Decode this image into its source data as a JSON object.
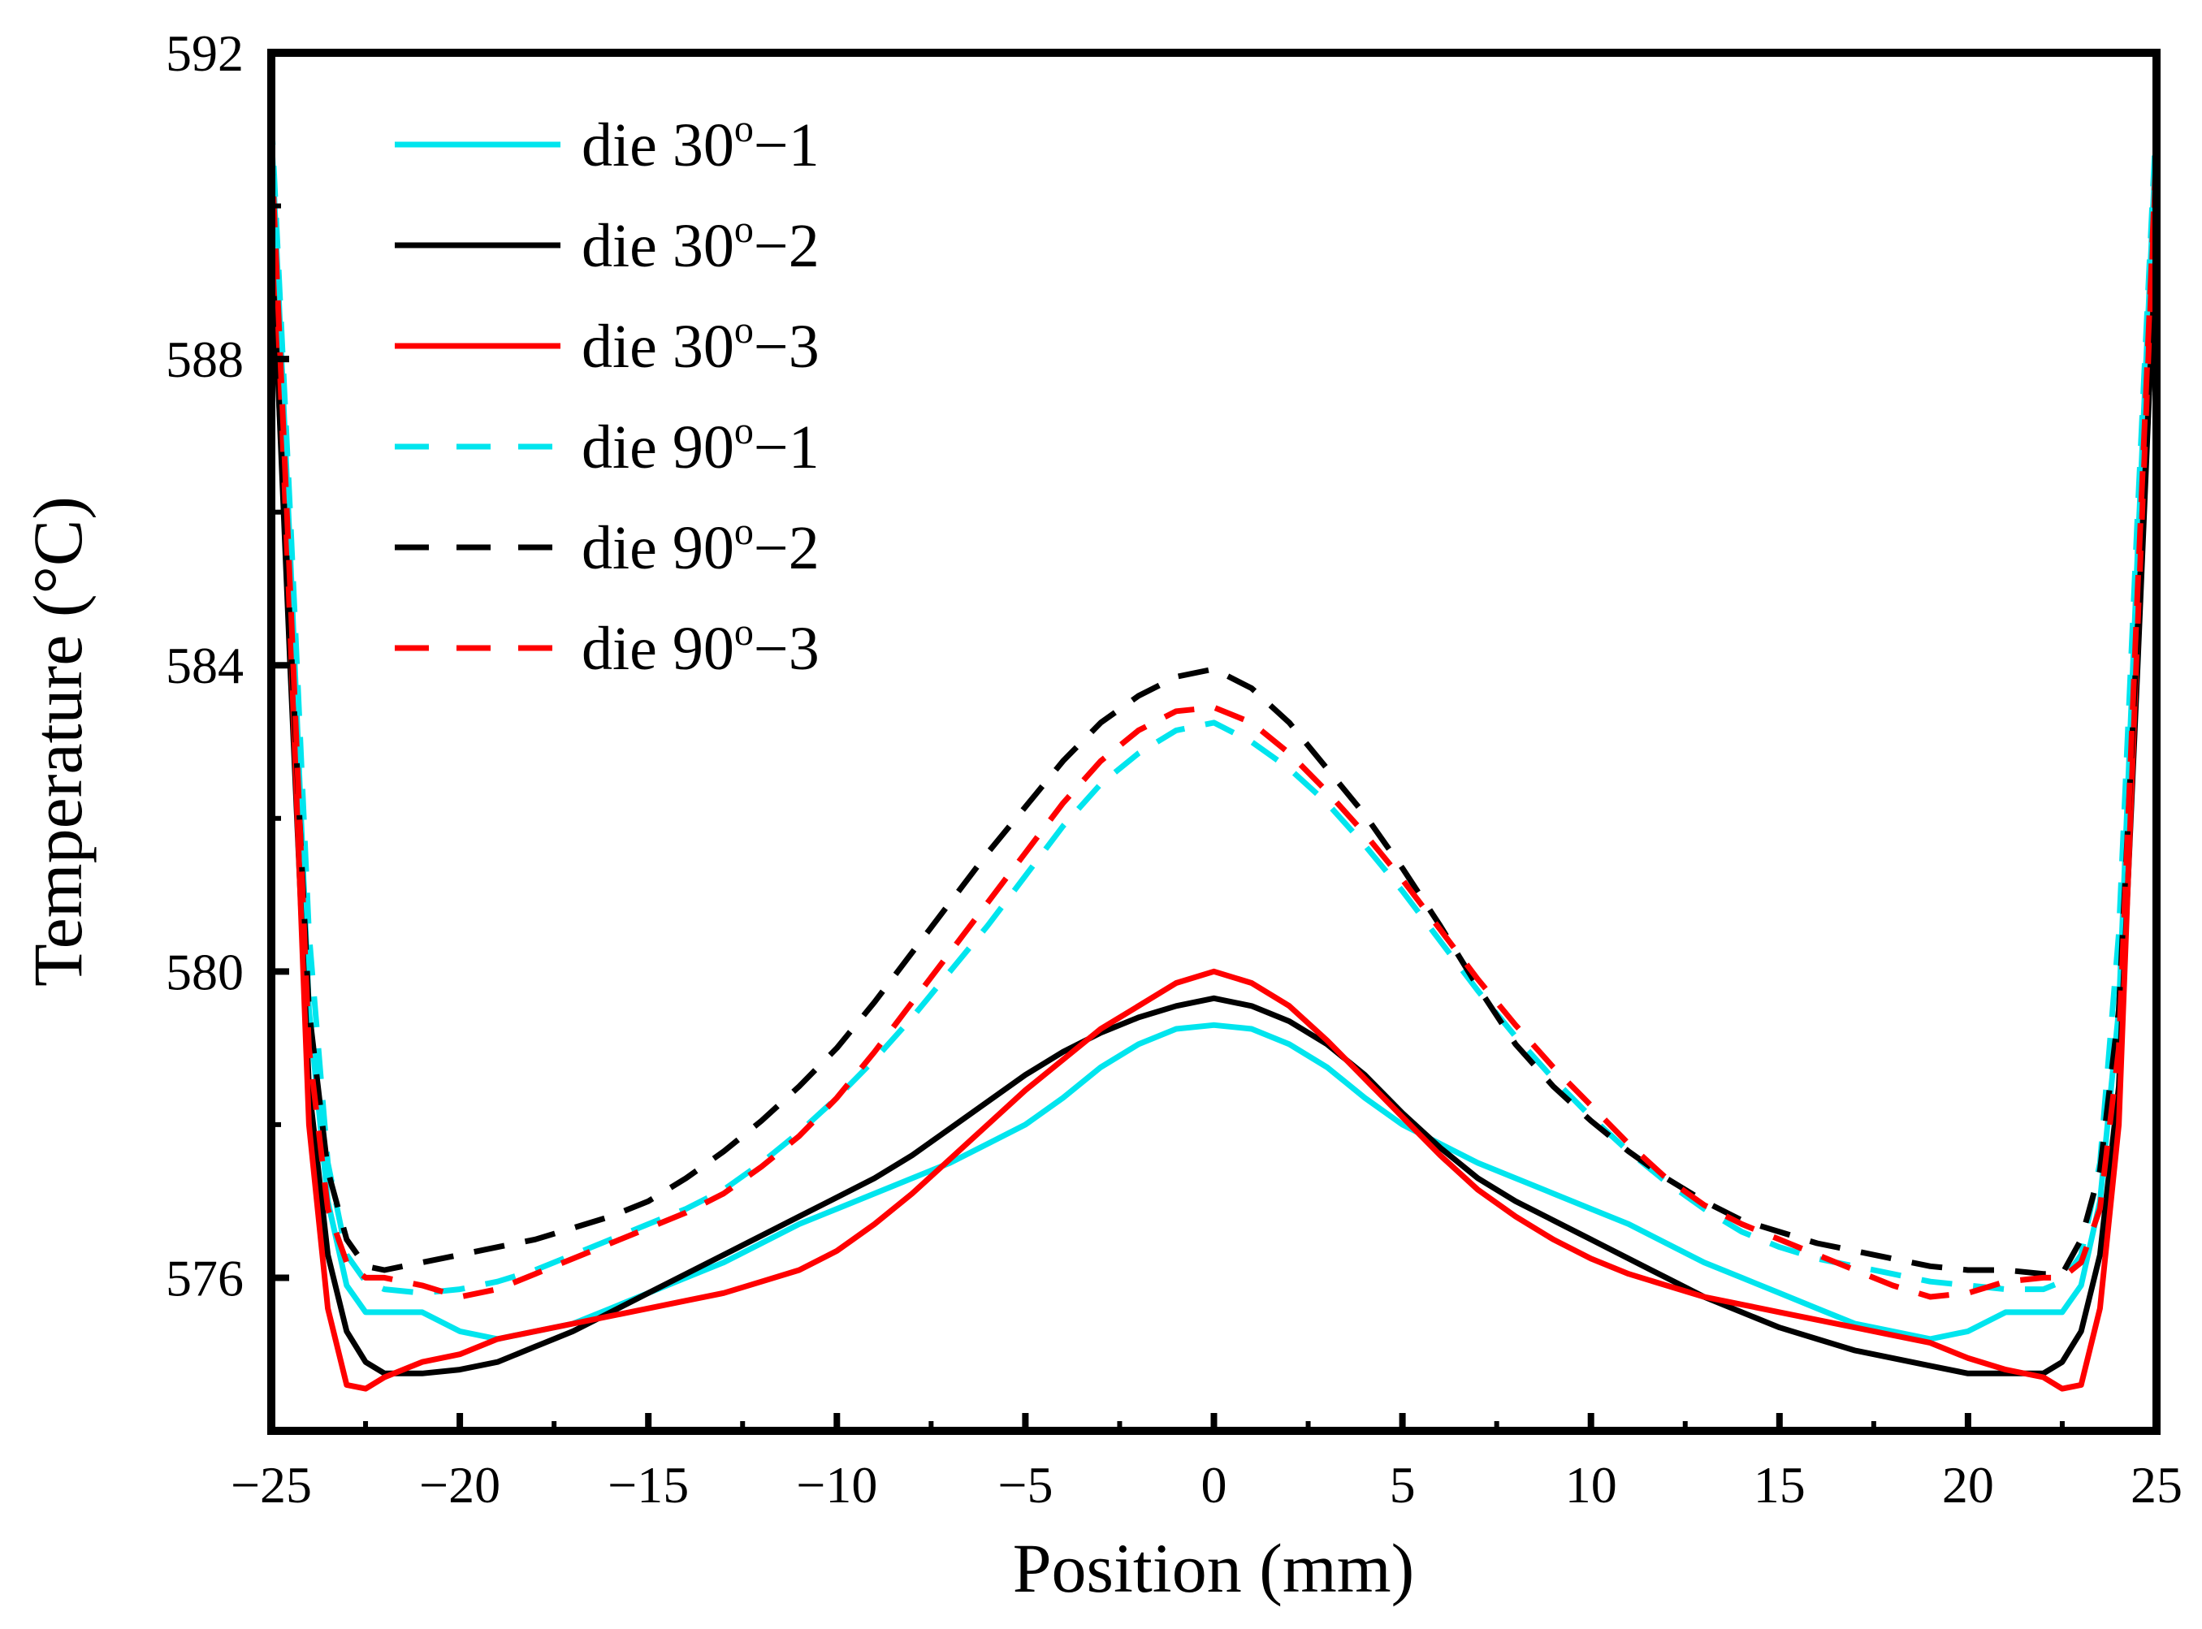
{
  "chart_data": {
    "type": "line",
    "xlabel": "Position (mm)",
    "ylabel": "Temperature (°C)",
    "xlim": [
      -25,
      25
    ],
    "ylim": [
      574,
      592
    ],
    "xticks": [
      -25,
      -20,
      -15,
      -10,
      -5,
      0,
      5,
      10,
      15,
      20,
      25
    ],
    "xtick_labels": [
      "−25",
      "−20",
      "−15",
      "−10",
      "−5",
      "0",
      "5",
      "10",
      "15",
      "20",
      "25"
    ],
    "yticks": [
      576,
      580,
      584,
      588,
      592
    ],
    "ytick_labels": [
      "576",
      "580",
      "584",
      "588",
      "592"
    ],
    "grid": false,
    "legend_position": "top-left",
    "series": [
      {
        "name": "die 30o−1",
        "label_main": "die 30",
        "label_sup": "o",
        "label_tail": "−1",
        "color": "#00E5EE",
        "dash": "solid",
        "x": [
          -25.0,
          -24.5,
          -24.0,
          -23.5,
          -23.0,
          -22.5,
          -22.0,
          -21.0,
          -20.0,
          -19.0,
          -18.0,
          -17.0,
          -16.0,
          -15.0,
          -14.0,
          -13.0,
          -12.0,
          -11.0,
          -10.0,
          -9.0,
          -8.0,
          -7.0,
          -6.0,
          -5.0,
          -4.0,
          -3.0,
          -2.0,
          -1.0,
          0.0,
          1.0,
          2.0,
          3.0,
          4.0,
          5.0,
          6.0,
          7.0,
          8.0,
          9.0,
          10.0,
          11.0,
          12.0,
          13.0,
          14.0,
          15.0,
          16.0,
          17.0,
          18.0,
          19.0,
          20.0,
          21.0,
          22.0,
          22.5,
          23.0,
          23.5,
          24.0,
          24.5,
          25.0
        ],
        "y": [
          591.0,
          585.5,
          579.5,
          577.0,
          575.9,
          575.55,
          575.55,
          575.55,
          575.3,
          575.2,
          575.3,
          575.4,
          575.6,
          575.8,
          576.0,
          576.2,
          576.45,
          576.7,
          576.9,
          577.1,
          577.3,
          577.5,
          577.75,
          578.0,
          578.35,
          578.75,
          579.05,
          579.25,
          579.3,
          579.25,
          579.05,
          578.75,
          578.35,
          578.0,
          577.75,
          577.5,
          577.3,
          577.1,
          576.9,
          576.7,
          576.45,
          576.2,
          576.0,
          575.8,
          575.6,
          575.4,
          575.3,
          575.2,
          575.3,
          575.55,
          575.55,
          575.55,
          575.9,
          577.0,
          579.5,
          585.5,
          591.0
        ]
      },
      {
        "name": "die 30o−2",
        "label_main": "die 30",
        "label_sup": "o",
        "label_tail": "−2",
        "color": "#000000",
        "dash": "solid",
        "x": [
          -25.0,
          -24.5,
          -24.0,
          -23.5,
          -23.0,
          -22.5,
          -22.0,
          -21.0,
          -20.0,
          -19.0,
          -18.0,
          -17.0,
          -16.0,
          -15.0,
          -14.0,
          -13.0,
          -12.0,
          -11.0,
          -10.0,
          -9.0,
          -8.0,
          -7.0,
          -6.0,
          -5.0,
          -4.0,
          -3.0,
          -2.0,
          -1.0,
          0.0,
          1.0,
          2.0,
          3.0,
          4.0,
          5.0,
          6.0,
          7.0,
          8.0,
          9.0,
          10.0,
          11.0,
          12.0,
          13.0,
          14.0,
          15.0,
          16.0,
          17.0,
          18.0,
          19.0,
          20.0,
          21.0,
          22.0,
          22.5,
          23.0,
          23.5,
          24.0,
          24.5,
          25.0
        ],
        "y": [
          589.8,
          584.0,
          578.5,
          576.3,
          575.3,
          574.9,
          574.75,
          574.75,
          574.8,
          574.9,
          575.1,
          575.3,
          575.55,
          575.8,
          576.05,
          576.3,
          576.55,
          576.8,
          577.05,
          577.3,
          577.6,
          577.95,
          578.3,
          578.65,
          578.95,
          579.2,
          579.4,
          579.55,
          579.65,
          579.55,
          579.35,
          579.05,
          578.65,
          578.15,
          577.7,
          577.3,
          577.0,
          576.75,
          576.5,
          576.25,
          576.0,
          575.75,
          575.55,
          575.35,
          575.2,
          575.05,
          574.95,
          574.85,
          574.75,
          574.75,
          574.75,
          574.9,
          575.3,
          576.3,
          578.5,
          584.0,
          589.8
        ]
      },
      {
        "name": "die 30o−3",
        "label_main": "die 30",
        "label_sup": "o",
        "label_tail": "−3",
        "color": "#FF0000",
        "dash": "solid",
        "x": [
          -25.0,
          -24.5,
          -24.0,
          -23.5,
          -23.0,
          -22.5,
          -22.0,
          -21.0,
          -20.0,
          -19.0,
          -18.0,
          -17.0,
          -16.0,
          -15.0,
          -14.0,
          -13.0,
          -12.0,
          -11.0,
          -10.0,
          -9.0,
          -8.0,
          -7.0,
          -6.0,
          -5.0,
          -4.0,
          -3.0,
          -2.0,
          -1.0,
          0.0,
          1.0,
          2.0,
          3.0,
          4.0,
          5.0,
          6.0,
          7.0,
          8.0,
          9.0,
          10.0,
          11.0,
          12.0,
          13.0,
          14.0,
          15.0,
          16.0,
          17.0,
          18.0,
          19.0,
          20.0,
          21.0,
          22.0,
          22.5,
          23.0,
          23.5,
          24.0,
          24.5,
          25.0
        ],
        "y": [
          590.7,
          584.5,
          578.0,
          575.6,
          574.6,
          574.55,
          574.7,
          574.9,
          575.0,
          575.2,
          575.3,
          575.4,
          575.5,
          575.6,
          575.7,
          575.8,
          575.95,
          576.1,
          576.35,
          576.7,
          577.1,
          577.55,
          578.0,
          578.45,
          578.85,
          579.25,
          579.55,
          579.85,
          580.0,
          579.85,
          579.55,
          579.1,
          578.6,
          578.1,
          577.6,
          577.15,
          576.8,
          576.5,
          576.25,
          576.05,
          575.9,
          575.75,
          575.65,
          575.55,
          575.45,
          575.35,
          575.25,
          575.15,
          574.95,
          574.8,
          574.7,
          574.55,
          574.6,
          575.6,
          578.0,
          584.5,
          590.7
        ]
      },
      {
        "name": "die 90o−1",
        "label_main": "die 90",
        "label_sup": "o",
        "label_tail": "−1",
        "color": "#00E5EE",
        "dash": "dashed",
        "x": [
          -25.0,
          -24.5,
          -24.0,
          -23.5,
          -23.0,
          -22.5,
          -22.0,
          -21.0,
          -20.0,
          -19.0,
          -18.0,
          -17.0,
          -16.0,
          -15.0,
          -14.0,
          -13.0,
          -12.0,
          -11.0,
          -10.0,
          -9.0,
          -8.0,
          -7.0,
          -6.0,
          -5.0,
          -4.0,
          -3.0,
          -2.0,
          -1.0,
          0.0,
          1.0,
          2.0,
          3.0,
          4.0,
          5.0,
          6.0,
          7.0,
          8.0,
          9.0,
          10.0,
          11.0,
          12.0,
          13.0,
          14.0,
          15.0,
          16.0,
          17.0,
          18.0,
          19.0,
          20.0,
          21.0,
          22.0,
          22.5,
          23.0,
          23.5,
          24.0,
          24.5,
          25.0
        ],
        "y": [
          591.2,
          586.0,
          580.5,
          577.5,
          576.3,
          575.95,
          575.85,
          575.8,
          575.85,
          575.95,
          576.1,
          576.3,
          576.5,
          576.7,
          576.9,
          577.15,
          577.5,
          577.9,
          578.35,
          578.85,
          579.4,
          580.0,
          580.6,
          581.25,
          581.9,
          582.45,
          582.85,
          583.15,
          583.25,
          583.0,
          582.65,
          582.2,
          581.65,
          581.05,
          580.4,
          579.75,
          579.15,
          578.6,
          578.1,
          577.65,
          577.25,
          576.9,
          576.6,
          576.4,
          576.25,
          576.15,
          576.05,
          575.95,
          575.9,
          575.85,
          575.85,
          575.95,
          576.3,
          577.5,
          580.5,
          586.0,
          591.2
        ]
      },
      {
        "name": "die 90o−2",
        "label_main": "die 90",
        "label_sup": "o",
        "label_tail": "−2",
        "color": "#000000",
        "dash": "dashed",
        "x": [
          -25.0,
          -24.5,
          -24.0,
          -23.5,
          -23.0,
          -22.5,
          -22.0,
          -21.0,
          -20.0,
          -19.0,
          -18.0,
          -17.0,
          -16.0,
          -15.0,
          -14.0,
          -13.0,
          -12.0,
          -11.0,
          -10.0,
          -9.0,
          -8.0,
          -7.0,
          -6.0,
          -5.0,
          -4.0,
          -3.0,
          -2.0,
          -1.0,
          0.0,
          1.0,
          2.0,
          3.0,
          4.0,
          5.0,
          6.0,
          7.0,
          8.0,
          9.0,
          10.0,
          11.0,
          12.0,
          13.0,
          14.0,
          15.0,
          16.0,
          17.0,
          18.0,
          19.0,
          20.0,
          21.0,
          22.0,
          22.5,
          23.0,
          23.5,
          24.0,
          24.5,
          25.0
        ],
        "y": [
          589.5,
          584.5,
          579.5,
          577.4,
          576.5,
          576.15,
          576.1,
          576.2,
          576.3,
          576.4,
          576.5,
          576.65,
          576.8,
          577.0,
          577.3,
          577.65,
          578.05,
          578.5,
          579.0,
          579.6,
          580.25,
          580.9,
          581.55,
          582.15,
          582.75,
          583.25,
          583.6,
          583.85,
          583.95,
          583.7,
          583.25,
          582.65,
          582.05,
          581.35,
          580.6,
          579.8,
          579.05,
          578.5,
          578.05,
          577.65,
          577.3,
          577.0,
          576.75,
          576.6,
          576.45,
          576.35,
          576.25,
          576.15,
          576.1,
          576.1,
          576.05,
          576.05,
          576.5,
          577.4,
          579.5,
          584.5,
          589.5
        ]
      },
      {
        "name": "die 90o−3",
        "label_main": "die 90",
        "label_sup": "o",
        "label_tail": "−3",
        "color": "#FF0000",
        "dash": "dashed",
        "x": [
          -25.0,
          -24.5,
          -24.0,
          -23.5,
          -23.0,
          -22.5,
          -22.0,
          -21.0,
          -20.0,
          -19.0,
          -18.0,
          -17.0,
          -16.0,
          -15.0,
          -14.0,
          -13.0,
          -12.0,
          -11.0,
          -10.0,
          -9.0,
          -8.0,
          -7.0,
          -6.0,
          -5.0,
          -4.0,
          -3.0,
          -2.0,
          -1.0,
          0.0,
          1.0,
          2.0,
          3.0,
          4.0,
          5.0,
          6.0,
          7.0,
          8.0,
          9.0,
          10.0,
          11.0,
          12.0,
          13.0,
          14.0,
          15.0,
          16.0,
          17.0,
          18.0,
          19.0,
          20.0,
          21.0,
          22.0,
          22.5,
          23.0,
          23.5,
          24.0,
          24.5,
          25.0
        ],
        "y": [
          590.8,
          585.0,
          579.0,
          576.9,
          576.2,
          576.0,
          576.0,
          575.9,
          575.75,
          575.85,
          576.05,
          576.25,
          576.45,
          576.65,
          576.85,
          577.1,
          577.45,
          577.85,
          578.35,
          578.95,
          579.6,
          580.25,
          580.9,
          581.55,
          582.2,
          582.75,
          583.15,
          583.4,
          583.45,
          583.25,
          582.85,
          582.35,
          581.8,
          581.2,
          580.55,
          579.9,
          579.3,
          578.75,
          578.25,
          577.75,
          577.3,
          576.95,
          576.7,
          576.5,
          576.3,
          576.1,
          575.9,
          575.75,
          575.8,
          575.95,
          576.0,
          576.0,
          576.2,
          576.9,
          579.0,
          585.0,
          590.8
        ]
      }
    ]
  }
}
